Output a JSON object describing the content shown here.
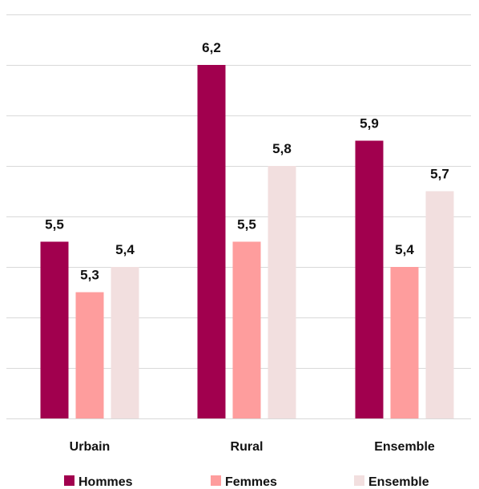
{
  "chart_data": {
    "type": "bar",
    "categories": [
      "Urbain",
      "Rural",
      "Ensemble"
    ],
    "series": [
      {
        "name": "Hommes",
        "values": [
          5.5,
          6.2,
          5.9
        ],
        "labels": [
          "5,5",
          "6,2",
          "5,9"
        ],
        "color": "#a1004e"
      },
      {
        "name": "Femmes",
        "values": [
          5.3,
          5.5,
          5.4
        ],
        "labels": [
          "5,3",
          "5,5",
          "5,4"
        ],
        "color": "#fe9d9d"
      },
      {
        "name": "Ensemble",
        "values": [
          5.4,
          5.8,
          5.7
        ],
        "labels": [
          "5,4",
          "5,8",
          "5,7"
        ],
        "color": "#f2dfdf"
      }
    ],
    "ylim": [
      4.8,
      6.4
    ],
    "grid": true,
    "gridline_color": "#d9d9d9",
    "legend_position": "bottom",
    "title": "",
    "xlabel": "",
    "ylabel": ""
  }
}
